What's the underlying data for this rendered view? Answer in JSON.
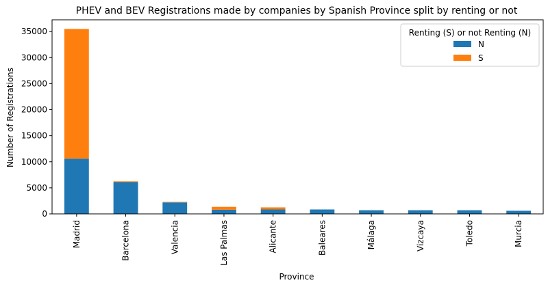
{
  "chart_data": {
    "type": "bar",
    "stacked": true,
    "title": "PHEV and BEV Registrations made by companies by Spanish Province split by renting or not",
    "xlabel": "Province",
    "ylabel": "Number of Registrations",
    "categories": [
      "Madrid",
      "Barcelona",
      "Valencia",
      "Las Palmas",
      "Alicante",
      "Baleares",
      "Málaga",
      "Vizcaya",
      "Toledo",
      "Murcia"
    ],
    "series": [
      {
        "name": "N",
        "color": "#1f77b4",
        "values": [
          10600,
          6100,
          2200,
          800,
          850,
          850,
          700,
          700,
          700,
          600
        ]
      },
      {
        "name": "S",
        "color": "#ff7f0e",
        "values": [
          24900,
          150,
          100,
          550,
          400,
          0,
          0,
          0,
          0,
          0
        ]
      }
    ],
    "ylim": [
      0,
      37250
    ],
    "yticks": [
      0,
      5000,
      10000,
      15000,
      20000,
      25000,
      30000,
      35000
    ],
    "grid": false,
    "legend": {
      "title": "Renting (S) or not Renting (N)",
      "position": "top-right"
    }
  }
}
